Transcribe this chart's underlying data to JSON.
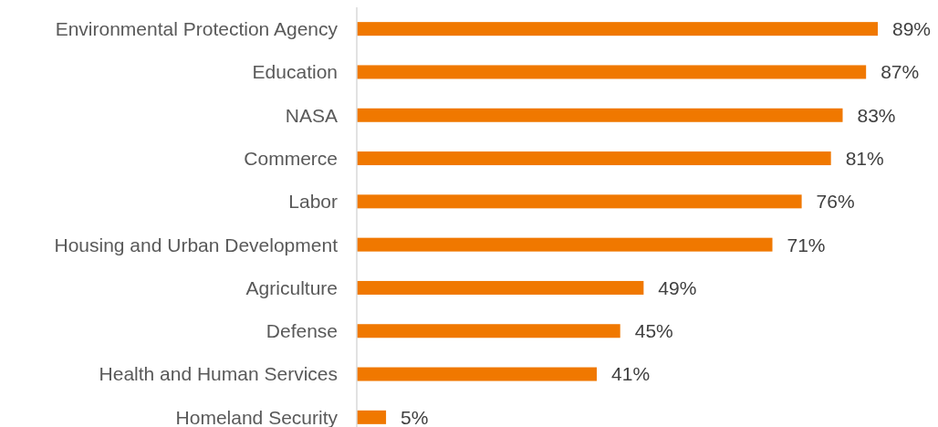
{
  "chart_data": {
    "type": "bar",
    "orientation": "horizontal",
    "categories": [
      "Environmental Protection Agency",
      "Education",
      "NASA",
      "Commerce",
      "Labor",
      "Housing and Urban Development",
      "Agriculture",
      "Defense",
      "Health and Human Services",
      "Homeland Security"
    ],
    "values": [
      89,
      87,
      83,
      81,
      76,
      71,
      49,
      45,
      41,
      5
    ],
    "value_labels": [
      "89%",
      "87%",
      "83%",
      "81%",
      "76%",
      "71%",
      "49%",
      "45%",
      "41%",
      "5%"
    ],
    "color": "#f07800"
  }
}
